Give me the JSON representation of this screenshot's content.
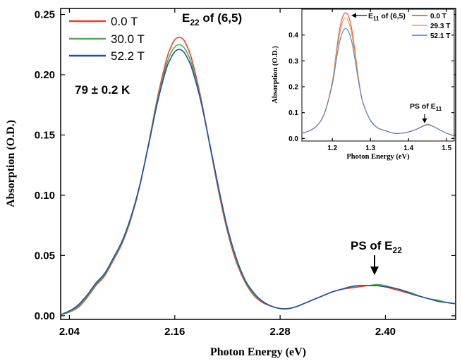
{
  "chart_data": [
    {
      "type": "line",
      "title": "",
      "xlabel": "Photon Energy (eV)",
      "ylabel": "Absorption (O.D.)",
      "xlim": [
        2.03,
        2.48
      ],
      "ylim": [
        -0.003,
        0.255
      ],
      "xticks": [
        2.04,
        2.16,
        2.28,
        2.4
      ],
      "xtick_labels": [
        "2.04",
        "2.16",
        "2.28",
        "2.40"
      ],
      "yticks": [
        0.0,
        0.05,
        0.1,
        0.15,
        0.2,
        0.25
      ],
      "ytick_labels": [
        "0.00",
        "0.05",
        "0.10",
        "0.15",
        "0.20",
        "0.25"
      ],
      "legend_position": "top-left",
      "annotations": {
        "peak_main": "E",
        "peak_sub": "22",
        "peak_tail": " of (6,5)",
        "ps_main": "PS of E",
        "ps_sub": "22",
        "temperature": "79 ± 0.2 K"
      },
      "series": [
        {
          "name": "0.0 T",
          "color": "#e8432e",
          "x": [
            2.03,
            2.04,
            2.05,
            2.06,
            2.07,
            2.08,
            2.09,
            2.1,
            2.11,
            2.12,
            2.13,
            2.14,
            2.15,
            2.155,
            2.16,
            2.165,
            2.17,
            2.175,
            2.18,
            2.19,
            2.2,
            2.21,
            2.22,
            2.23,
            2.24,
            2.25,
            2.26,
            2.27,
            2.28,
            2.29,
            2.3,
            2.31,
            2.32,
            2.33,
            2.34,
            2.35,
            2.36,
            2.37,
            2.38,
            2.39,
            2.4,
            2.41,
            2.42,
            2.43,
            2.44,
            2.45,
            2.46,
            2.47,
            2.48
          ],
          "values": [
            0.001,
            0.003,
            0.007,
            0.015,
            0.025,
            0.033,
            0.046,
            0.06,
            0.08,
            0.107,
            0.142,
            0.18,
            0.211,
            0.222,
            0.229,
            0.231,
            0.229,
            0.222,
            0.211,
            0.18,
            0.141,
            0.103,
            0.07,
            0.045,
            0.028,
            0.017,
            0.011,
            0.008,
            0.006,
            0.006,
            0.008,
            0.011,
            0.014,
            0.017,
            0.02,
            0.022,
            0.023,
            0.024,
            0.025,
            0.025,
            0.024,
            0.022,
            0.02,
            0.018,
            0.016,
            0.014,
            0.012,
            0.011,
            0.01
          ]
        },
        {
          "name": "30.0 T",
          "color": "#4caf50",
          "x": [
            2.03,
            2.04,
            2.05,
            2.06,
            2.07,
            2.08,
            2.09,
            2.1,
            2.11,
            2.12,
            2.13,
            2.14,
            2.15,
            2.155,
            2.16,
            2.165,
            2.17,
            2.175,
            2.18,
            2.19,
            2.2,
            2.21,
            2.22,
            2.23,
            2.24,
            2.25,
            2.26,
            2.27,
            2.28,
            2.29,
            2.3,
            2.31,
            2.32,
            2.33,
            2.34,
            2.35,
            2.36,
            2.37,
            2.38,
            2.39,
            2.4,
            2.41,
            2.42,
            2.43,
            2.44,
            2.45,
            2.46,
            2.47,
            2.48
          ],
          "values": [
            0.001,
            0.003,
            0.008,
            0.016,
            0.026,
            0.034,
            0.047,
            0.061,
            0.081,
            0.108,
            0.142,
            0.178,
            0.207,
            0.217,
            0.223,
            0.225,
            0.223,
            0.217,
            0.207,
            0.178,
            0.141,
            0.105,
            0.072,
            0.047,
            0.029,
            0.018,
            0.012,
            0.008,
            0.006,
            0.006,
            0.008,
            0.011,
            0.014,
            0.017,
            0.02,
            0.022,
            0.024,
            0.025,
            0.025,
            0.026,
            0.025,
            0.023,
            0.021,
            0.019,
            0.016,
            0.014,
            0.013,
            0.011,
            0.01
          ]
        },
        {
          "name": "52.2 T",
          "color": "#1f4fa8",
          "x": [
            2.03,
            2.04,
            2.05,
            2.06,
            2.07,
            2.08,
            2.09,
            2.1,
            2.11,
            2.12,
            2.13,
            2.14,
            2.15,
            2.155,
            2.16,
            2.165,
            2.17,
            2.175,
            2.18,
            2.19,
            2.2,
            2.21,
            2.22,
            2.23,
            2.24,
            2.25,
            2.26,
            2.27,
            2.28,
            2.29,
            2.3,
            2.31,
            2.32,
            2.33,
            2.34,
            2.35,
            2.36,
            2.37,
            2.38,
            2.39,
            2.4,
            2.41,
            2.42,
            2.43,
            2.44,
            2.45,
            2.46,
            2.47,
            2.48
          ],
          "values": [
            0.001,
            0.004,
            0.009,
            0.017,
            0.027,
            0.035,
            0.048,
            0.062,
            0.082,
            0.108,
            0.141,
            0.176,
            0.204,
            0.213,
            0.219,
            0.221,
            0.219,
            0.213,
            0.204,
            0.177,
            0.142,
            0.106,
            0.073,
            0.048,
            0.03,
            0.019,
            0.012,
            0.008,
            0.006,
            0.006,
            0.008,
            0.011,
            0.014,
            0.017,
            0.02,
            0.022,
            0.024,
            0.025,
            0.025,
            0.025,
            0.024,
            0.023,
            0.021,
            0.018,
            0.016,
            0.014,
            0.012,
            0.011,
            0.01
          ]
        }
      ]
    },
    {
      "type": "line",
      "title": "",
      "xlabel": "Photon Energy (eV)",
      "ylabel": "Absorption (O.D.)",
      "xlim": [
        1.12,
        1.52
      ],
      "ylim": [
        -0.01,
        0.5
      ],
      "xticks": [
        1.2,
        1.3,
        1.4,
        1.5
      ],
      "xtick_labels": [
        "1.2",
        "1.3",
        "1.4",
        "1.5"
      ],
      "yticks": [
        0.0,
        0.1,
        0.2,
        0.3,
        0.4
      ],
      "ytick_labels": [
        "0.0",
        "0.1",
        "0.2",
        "0.3",
        "0.4"
      ],
      "legend_position": "top-right",
      "annotations": {
        "peak_main": "E",
        "peak_sub": "11",
        "peak_tail": " of (6,5)",
        "ps_main": "PS of E",
        "ps_sub": "11"
      },
      "series": [
        {
          "name": "0.0 T",
          "color": "#e8432e",
          "x": [
            1.12,
            1.14,
            1.16,
            1.18,
            1.2,
            1.21,
            1.22,
            1.23,
            1.24,
            1.25,
            1.26,
            1.27,
            1.28,
            1.3,
            1.32,
            1.34,
            1.36,
            1.38,
            1.4,
            1.42,
            1.44,
            1.45,
            1.46,
            1.48,
            1.5,
            1.52
          ],
          "values": [
            0.02,
            0.03,
            0.05,
            0.1,
            0.22,
            0.33,
            0.43,
            0.48,
            0.48,
            0.43,
            0.33,
            0.22,
            0.14,
            0.07,
            0.04,
            0.03,
            0.02,
            0.02,
            0.025,
            0.035,
            0.05,
            0.055,
            0.05,
            0.035,
            0.02,
            0.01
          ]
        },
        {
          "name": "29.3 T",
          "color": "#e9a13b",
          "x": [
            1.12,
            1.14,
            1.16,
            1.18,
            1.2,
            1.21,
            1.22,
            1.23,
            1.24,
            1.25,
            1.26,
            1.27,
            1.28,
            1.3,
            1.32,
            1.34,
            1.36,
            1.38,
            1.4,
            1.42,
            1.44,
            1.45,
            1.46,
            1.48,
            1.5,
            1.52
          ],
          "values": [
            0.02,
            0.03,
            0.05,
            0.1,
            0.22,
            0.32,
            0.41,
            0.46,
            0.46,
            0.41,
            0.32,
            0.22,
            0.14,
            0.07,
            0.04,
            0.03,
            0.02,
            0.02,
            0.025,
            0.035,
            0.05,
            0.055,
            0.05,
            0.035,
            0.02,
            0.01
          ]
        },
        {
          "name": "52.1 T",
          "color": "#4a7cc7",
          "x": [
            1.12,
            1.14,
            1.16,
            1.18,
            1.2,
            1.21,
            1.22,
            1.23,
            1.24,
            1.25,
            1.26,
            1.27,
            1.28,
            1.3,
            1.32,
            1.34,
            1.36,
            1.38,
            1.4,
            1.42,
            1.44,
            1.45,
            1.46,
            1.48,
            1.5,
            1.52
          ],
          "values": [
            0.02,
            0.03,
            0.05,
            0.1,
            0.21,
            0.3,
            0.38,
            0.42,
            0.42,
            0.38,
            0.3,
            0.21,
            0.14,
            0.07,
            0.04,
            0.03,
            0.02,
            0.02,
            0.025,
            0.035,
            0.048,
            0.053,
            0.049,
            0.035,
            0.02,
            0.01
          ]
        }
      ]
    }
  ]
}
